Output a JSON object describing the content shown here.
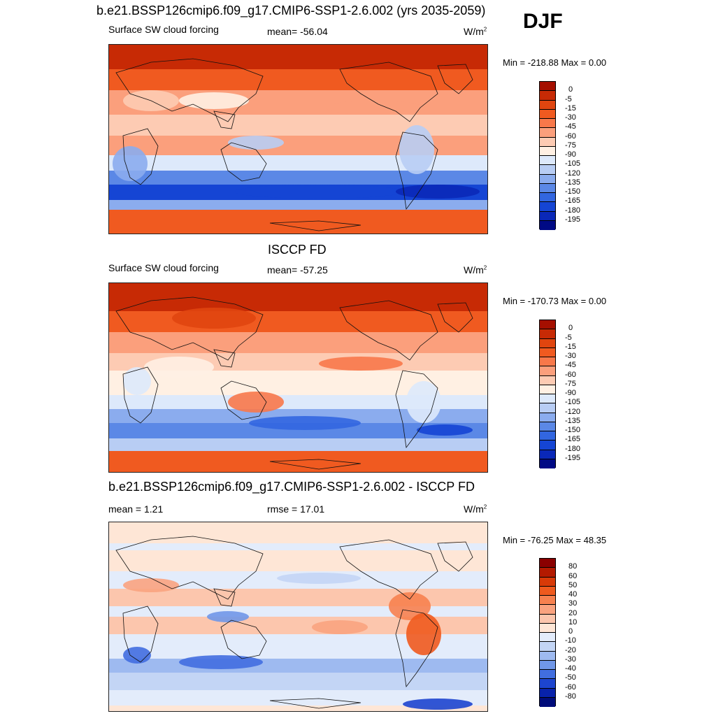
{
  "header": {
    "title": "b.e21.BSSP126cmip6.f09_g17.CMIP6-SSP1-2.6.002 (yrs 2035-2059)",
    "season": "DJF"
  },
  "panels": [
    {
      "id": "model",
      "heading": "",
      "variable": "Surface SW cloud forcing",
      "stat_left": "",
      "stat_mid": "mean= -56.04",
      "units": "W/m",
      "units_sup": "2",
      "minmax": "Min = -218.88 Max =   0.00",
      "levels": [
        "0",
        "-5",
        "-15",
        "-30",
        "-45",
        "-60",
        "-75",
        "-90",
        "-105",
        "-120",
        "-135",
        "-150",
        "-165",
        "-180",
        "-195"
      ],
      "colors": [
        "#a50f00",
        "#c72a05",
        "#e0450f",
        "#f05a20",
        "#f8784a",
        "#fb9f7c",
        "#fdcbb3",
        "#fff0e3",
        "#dde9fb",
        "#b8cdf4",
        "#8bacee",
        "#5b88e6",
        "#3266e0",
        "#1545d4",
        "#0a28b8",
        "#000a85"
      ],
      "map_style": "model"
    },
    {
      "id": "obs",
      "heading": "ISCCP FD",
      "variable": "Surface SW cloud forcing",
      "stat_left": "",
      "stat_mid": "mean= -57.25",
      "units": "W/m",
      "units_sup": "2",
      "minmax": "Min = -170.73 Max =   0.00",
      "levels": [
        "0",
        "-5",
        "-15",
        "-30",
        "-45",
        "-60",
        "-75",
        "-90",
        "-105",
        "-120",
        "-135",
        "-150",
        "-165",
        "-180",
        "-195"
      ],
      "colors": [
        "#a50f00",
        "#c72a05",
        "#e0450f",
        "#f05a20",
        "#f8784a",
        "#fb9f7c",
        "#fdcbb3",
        "#fff0e3",
        "#dde9fb",
        "#b8cdf4",
        "#8bacee",
        "#5b88e6",
        "#3266e0",
        "#1545d4",
        "#0a28b8",
        "#000a85"
      ],
      "map_style": "obs"
    },
    {
      "id": "diff",
      "heading": "b.e21.BSSP126cmip6.f09_g17.CMIP6-SSP1-2.6.002 - ISCCP FD",
      "variable": "",
      "stat_left": "mean =   1.21",
      "stat_mid": "rmse =  17.01",
      "units": "W/m",
      "units_sup": "2",
      "minmax": "Min = -76.25 Max =  48.35",
      "levels": [
        "80",
        "60",
        "50",
        "40",
        "30",
        "20",
        "10",
        "0",
        "-10",
        "-20",
        "-30",
        "-40",
        "-50",
        "-60",
        "-80"
      ],
      "colors": [
        "#8a0000",
        "#b31a00",
        "#d83a08",
        "#ef5a1e",
        "#f7814f",
        "#faa37f",
        "#fcc6ad",
        "#fee6d6",
        "#e3ecfb",
        "#c3d5f5",
        "#9ebaf0",
        "#7097e8",
        "#416ee0",
        "#1d45cf",
        "#0822ab",
        "#000c7a"
      ],
      "map_style": "diff"
    }
  ]
}
